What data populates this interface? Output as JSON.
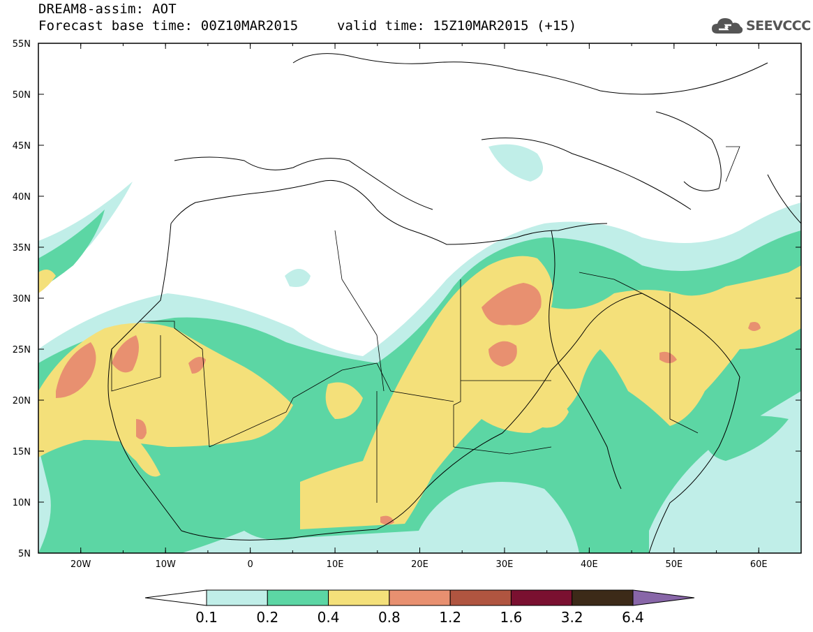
{
  "header": {
    "title": "DREAM8-assim: AOT",
    "base_time": "Forecast base time: 00Z10MAR2015",
    "valid_time": "valid time: 15Z10MAR2015 (+15)",
    "logo_text": "SEEVCCC"
  },
  "map": {
    "lon_range": [
      -25,
      65
    ],
    "lat_range": [
      5,
      55
    ],
    "lat_ticks": [
      "55N",
      "50N",
      "45N",
      "40N",
      "35N",
      "30N",
      "25N",
      "20N",
      "15N",
      "10N",
      "5N"
    ],
    "lon_ticks": [
      "20W",
      "10W",
      "0",
      "10E",
      "20E",
      "30E",
      "40E",
      "50E",
      "60E"
    ]
  },
  "colorbar": {
    "labels": [
      "0.1",
      "0.2",
      "0.4",
      "0.8",
      "1.2",
      "1.6",
      "3.2",
      "6.4"
    ],
    "colors": [
      "#ffffff",
      "#c0eee8",
      "#5cd6a4",
      "#f4e07a",
      "#e89070",
      "#b05540",
      "#7a1030",
      "#3c2a18",
      "#8866a8"
    ]
  },
  "colors": {
    "aot_0_1": "#c0eee8",
    "aot_0_2": "#5cd6a4",
    "aot_0_4": "#f4e07a",
    "aot_0_8": "#e89070",
    "border": "#000000"
  }
}
